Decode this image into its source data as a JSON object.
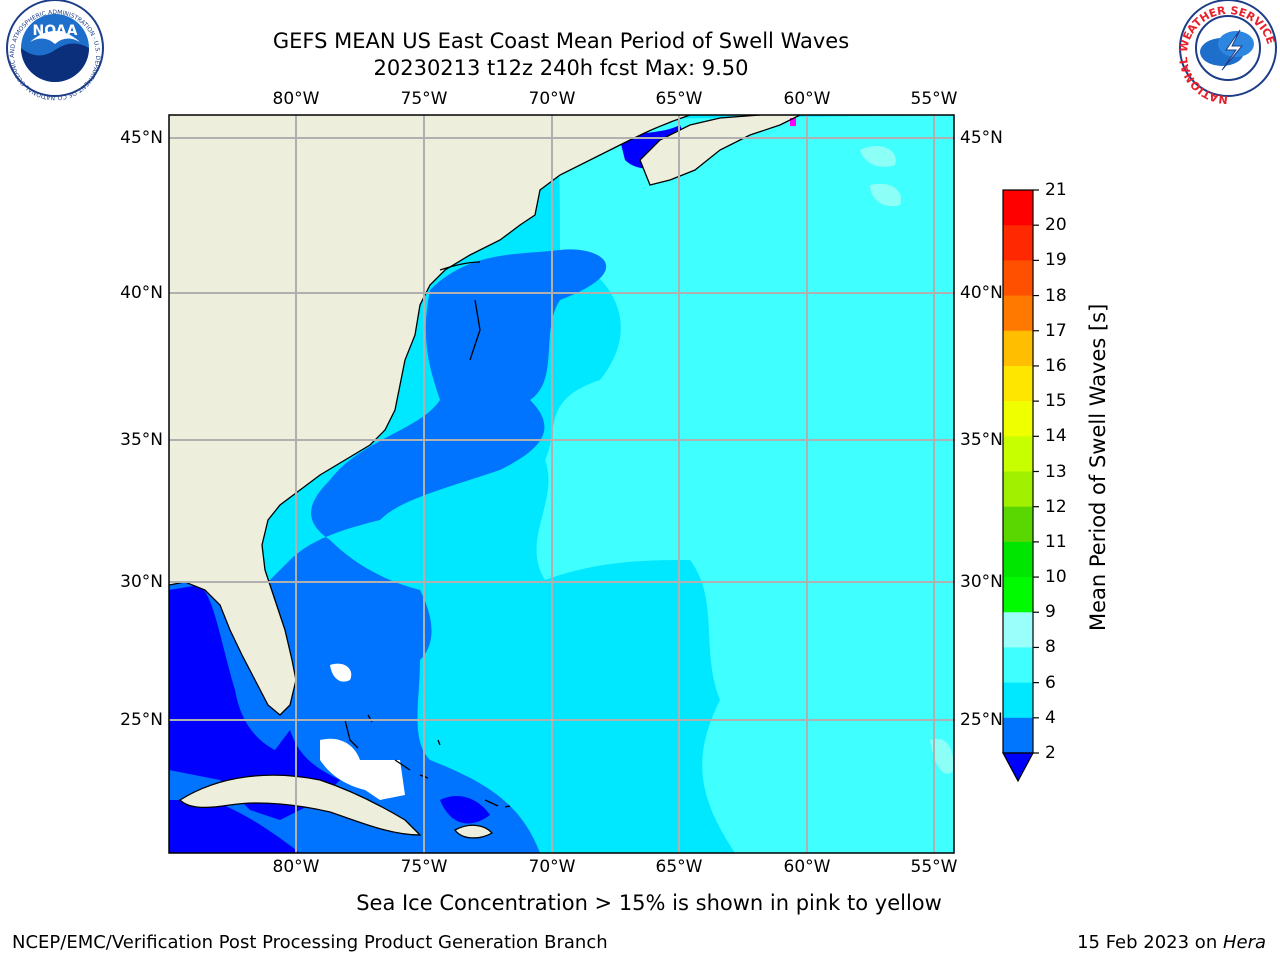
{
  "header": {
    "title_line1": "GEFS MEAN US East Coast Mean Period of Swell Waves",
    "title_line2": "20230213 t12z 240h fcst   Max: 9.50"
  },
  "logos": {
    "noaa_text": "NOAA",
    "noaa_ring_text": "NATIONAL OCEANIC AND ATMOSPHERIC ADMINISTRATION · U.S. DEPARTMENT OF COMMERCE",
    "nws_ring_text": "NATIONAL WEATHER SERVICE"
  },
  "map": {
    "lon_labels": [
      "80°W",
      "75°W",
      "70°W",
      "65°W",
      "60°W",
      "55°W"
    ],
    "lat_labels": [
      "45°N",
      "40°N",
      "35°N",
      "30°N",
      "25°N"
    ],
    "colors": {
      "land": "#eeeedd",
      "coast": "#000000",
      "grid": "#b0b0b0",
      "ocean_dark": "#0000ff",
      "ocean_blue": "#0073ff",
      "ocean_cyan": "#00e8ff",
      "ocean_light": "#3fffff",
      "ocean_pale": "#8cfff6",
      "sea_ice": "#ff00ff"
    }
  },
  "colorbar": {
    "label": "Mean Period of Swell Waves [s]",
    "ticks": [
      "21",
      "20",
      "19",
      "18",
      "17",
      "16",
      "15",
      "14",
      "13",
      "12",
      "11",
      "10",
      "9",
      "8",
      "6",
      "4",
      "2"
    ],
    "colors": [
      "#ff0000",
      "#ff2800",
      "#ff5000",
      "#ff7800",
      "#ff9b00",
      "#ffbe00",
      "#ffe600",
      "#f0ff00",
      "#c8ff00",
      "#a0f000",
      "#5ad700",
      "#00e600",
      "#00fa00",
      "#4cf278",
      "#9afffa",
      "#40ffff",
      "#00e8ff",
      "#0076ff",
      "#0000ff"
    ]
  },
  "notes": {
    "sea_ice": "Sea Ice Concentration > 15% is shown in pink to yellow"
  },
  "footer": {
    "left": "NCEP/EMC/Verification Post Processing Product Generation Branch",
    "right_date": "15 Feb 2023 on ",
    "right_host": "Hera"
  }
}
